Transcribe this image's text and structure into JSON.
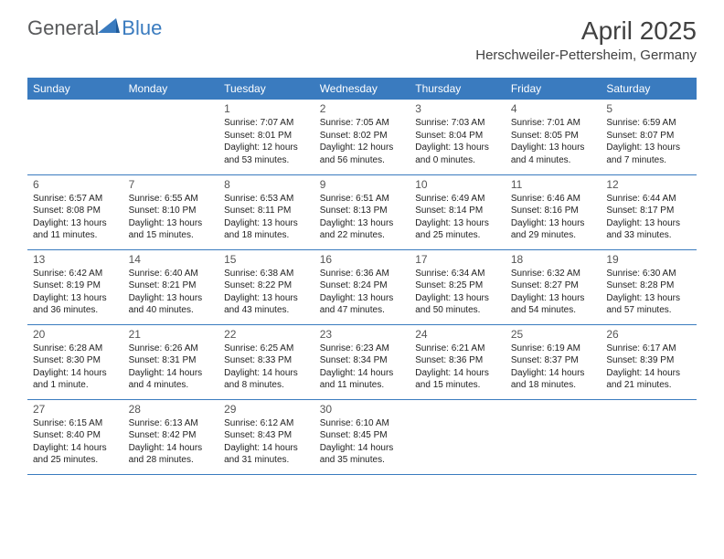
{
  "logo": {
    "text_general": "General",
    "text_blue": "Blue"
  },
  "title": "April 2025",
  "location": "Herschweiler-Pettersheim, Germany",
  "colors": {
    "header_bg": "#3a7bbf",
    "header_text": "#ffffff",
    "row_border": "#3a7bbf",
    "logo_gray": "#58595b",
    "logo_blue": "#3a7bbf",
    "title_color": "#414141",
    "body_text": "#222222",
    "daynum_color": "#555555",
    "page_bg": "#ffffff"
  },
  "day_headers": [
    "Sunday",
    "Monday",
    "Tuesday",
    "Wednesday",
    "Thursday",
    "Friday",
    "Saturday"
  ],
  "weeks": [
    [
      null,
      null,
      {
        "n": "1",
        "sr": "Sunrise: 7:07 AM",
        "ss": "Sunset: 8:01 PM",
        "dl": "Daylight: 12 hours and 53 minutes."
      },
      {
        "n": "2",
        "sr": "Sunrise: 7:05 AM",
        "ss": "Sunset: 8:02 PM",
        "dl": "Daylight: 12 hours and 56 minutes."
      },
      {
        "n": "3",
        "sr": "Sunrise: 7:03 AM",
        "ss": "Sunset: 8:04 PM",
        "dl": "Daylight: 13 hours and 0 minutes."
      },
      {
        "n": "4",
        "sr": "Sunrise: 7:01 AM",
        "ss": "Sunset: 8:05 PM",
        "dl": "Daylight: 13 hours and 4 minutes."
      },
      {
        "n": "5",
        "sr": "Sunrise: 6:59 AM",
        "ss": "Sunset: 8:07 PM",
        "dl": "Daylight: 13 hours and 7 minutes."
      }
    ],
    [
      {
        "n": "6",
        "sr": "Sunrise: 6:57 AM",
        "ss": "Sunset: 8:08 PM",
        "dl": "Daylight: 13 hours and 11 minutes."
      },
      {
        "n": "7",
        "sr": "Sunrise: 6:55 AM",
        "ss": "Sunset: 8:10 PM",
        "dl": "Daylight: 13 hours and 15 minutes."
      },
      {
        "n": "8",
        "sr": "Sunrise: 6:53 AM",
        "ss": "Sunset: 8:11 PM",
        "dl": "Daylight: 13 hours and 18 minutes."
      },
      {
        "n": "9",
        "sr": "Sunrise: 6:51 AM",
        "ss": "Sunset: 8:13 PM",
        "dl": "Daylight: 13 hours and 22 minutes."
      },
      {
        "n": "10",
        "sr": "Sunrise: 6:49 AM",
        "ss": "Sunset: 8:14 PM",
        "dl": "Daylight: 13 hours and 25 minutes."
      },
      {
        "n": "11",
        "sr": "Sunrise: 6:46 AM",
        "ss": "Sunset: 8:16 PM",
        "dl": "Daylight: 13 hours and 29 minutes."
      },
      {
        "n": "12",
        "sr": "Sunrise: 6:44 AM",
        "ss": "Sunset: 8:17 PM",
        "dl": "Daylight: 13 hours and 33 minutes."
      }
    ],
    [
      {
        "n": "13",
        "sr": "Sunrise: 6:42 AM",
        "ss": "Sunset: 8:19 PM",
        "dl": "Daylight: 13 hours and 36 minutes."
      },
      {
        "n": "14",
        "sr": "Sunrise: 6:40 AM",
        "ss": "Sunset: 8:21 PM",
        "dl": "Daylight: 13 hours and 40 minutes."
      },
      {
        "n": "15",
        "sr": "Sunrise: 6:38 AM",
        "ss": "Sunset: 8:22 PM",
        "dl": "Daylight: 13 hours and 43 minutes."
      },
      {
        "n": "16",
        "sr": "Sunrise: 6:36 AM",
        "ss": "Sunset: 8:24 PM",
        "dl": "Daylight: 13 hours and 47 minutes."
      },
      {
        "n": "17",
        "sr": "Sunrise: 6:34 AM",
        "ss": "Sunset: 8:25 PM",
        "dl": "Daylight: 13 hours and 50 minutes."
      },
      {
        "n": "18",
        "sr": "Sunrise: 6:32 AM",
        "ss": "Sunset: 8:27 PM",
        "dl": "Daylight: 13 hours and 54 minutes."
      },
      {
        "n": "19",
        "sr": "Sunrise: 6:30 AM",
        "ss": "Sunset: 8:28 PM",
        "dl": "Daylight: 13 hours and 57 minutes."
      }
    ],
    [
      {
        "n": "20",
        "sr": "Sunrise: 6:28 AM",
        "ss": "Sunset: 8:30 PM",
        "dl": "Daylight: 14 hours and 1 minute."
      },
      {
        "n": "21",
        "sr": "Sunrise: 6:26 AM",
        "ss": "Sunset: 8:31 PM",
        "dl": "Daylight: 14 hours and 4 minutes."
      },
      {
        "n": "22",
        "sr": "Sunrise: 6:25 AM",
        "ss": "Sunset: 8:33 PM",
        "dl": "Daylight: 14 hours and 8 minutes."
      },
      {
        "n": "23",
        "sr": "Sunrise: 6:23 AM",
        "ss": "Sunset: 8:34 PM",
        "dl": "Daylight: 14 hours and 11 minutes."
      },
      {
        "n": "24",
        "sr": "Sunrise: 6:21 AM",
        "ss": "Sunset: 8:36 PM",
        "dl": "Daylight: 14 hours and 15 minutes."
      },
      {
        "n": "25",
        "sr": "Sunrise: 6:19 AM",
        "ss": "Sunset: 8:37 PM",
        "dl": "Daylight: 14 hours and 18 minutes."
      },
      {
        "n": "26",
        "sr": "Sunrise: 6:17 AM",
        "ss": "Sunset: 8:39 PM",
        "dl": "Daylight: 14 hours and 21 minutes."
      }
    ],
    [
      {
        "n": "27",
        "sr": "Sunrise: 6:15 AM",
        "ss": "Sunset: 8:40 PM",
        "dl": "Daylight: 14 hours and 25 minutes."
      },
      {
        "n": "28",
        "sr": "Sunrise: 6:13 AM",
        "ss": "Sunset: 8:42 PM",
        "dl": "Daylight: 14 hours and 28 minutes."
      },
      {
        "n": "29",
        "sr": "Sunrise: 6:12 AM",
        "ss": "Sunset: 8:43 PM",
        "dl": "Daylight: 14 hours and 31 minutes."
      },
      {
        "n": "30",
        "sr": "Sunrise: 6:10 AM",
        "ss": "Sunset: 8:45 PM",
        "dl": "Daylight: 14 hours and 35 minutes."
      },
      null,
      null,
      null
    ]
  ]
}
